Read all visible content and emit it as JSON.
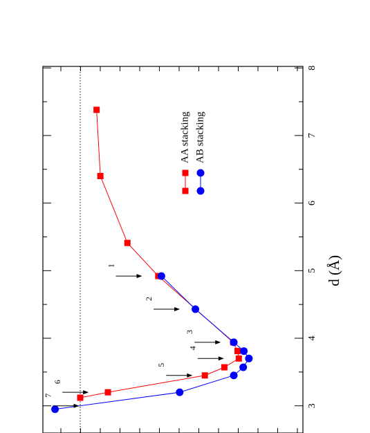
{
  "chart_data": {
    "type": "line",
    "orientation": "rotated-90-clockwise",
    "title": "",
    "xlabel": "d (Å)",
    "ylabel": "",
    "xlim": [
      2.85,
      8.0
    ],
    "x_ticks": [
      "3",
      "4",
      "5",
      "6",
      "7",
      "8"
    ],
    "grid": false,
    "legend_position": "top-right",
    "reference_line": {
      "y": 0.0,
      "style": "dotted"
    },
    "series": [
      {
        "name": "AA stacking",
        "color": "#ff0000",
        "marker": "square",
        "points": [
          {
            "x": 3.12,
            "y": 0.0
          },
          {
            "x": 3.2,
            "y": -0.44
          },
          {
            "x": 3.45,
            "y": -1.98
          },
          {
            "x": 3.57,
            "y": -2.29
          },
          {
            "x": 3.7,
            "y": -2.52
          },
          {
            "x": 3.81,
            "y": -2.5
          },
          {
            "x": 3.94,
            "y": -2.43
          },
          {
            "x": 4.92,
            "y": -1.24
          },
          {
            "x": 5.41,
            "y": -0.75
          },
          {
            "x": 6.4,
            "y": -0.32
          },
          {
            "x": 7.38,
            "y": -0.26
          }
        ]
      },
      {
        "name": "AB stacking",
        "color": "#0000ff",
        "marker": "circle",
        "points": [
          {
            "x": 2.95,
            "y": 0.4
          },
          {
            "x": 3.2,
            "y": -1.58
          },
          {
            "x": 3.45,
            "y": -2.44
          },
          {
            "x": 3.57,
            "y": -2.59
          },
          {
            "x": 3.7,
            "y": -2.68
          },
          {
            "x": 3.81,
            "y": -2.6
          },
          {
            "x": 3.94,
            "y": -2.44
          },
          {
            "x": 4.43,
            "y": -1.83
          },
          {
            "x": 4.92,
            "y": -1.29
          }
        ]
      }
    ],
    "annotations": [
      {
        "label": "1",
        "x": 4.92,
        "y": -0.5
      },
      {
        "label": "2",
        "x": 4.43,
        "y": -1.1
      },
      {
        "label": "3",
        "x": 3.94,
        "y": -1.75
      },
      {
        "label": "4",
        "x": 3.7,
        "y": -1.8
      },
      {
        "label": "5",
        "x": 3.45,
        "y": -1.3
      },
      {
        "label": "6",
        "x": 3.2,
        "y": 0.35
      },
      {
        "label": "7",
        "x": 3.0,
        "y": 0.5
      }
    ]
  }
}
